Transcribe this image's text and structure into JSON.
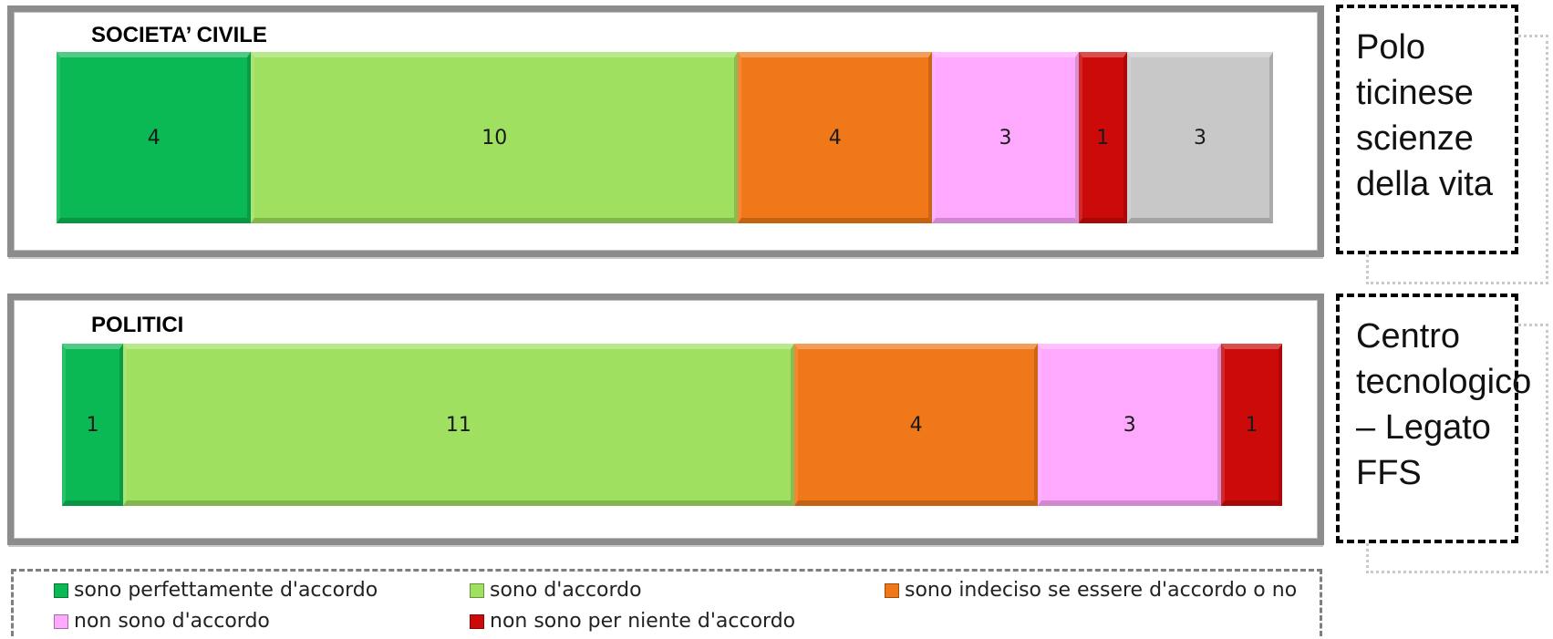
{
  "chart_data": [
    {
      "type": "bar",
      "orientation": "horizontal-stacked",
      "title": "SOCIETA’ CIVILE",
      "series": [
        {
          "name": "sono perfettamente d'accordo",
          "value": 4,
          "color": "#0ab854"
        },
        {
          "name": "sono d'accordo",
          "value": 10,
          "color": "#a0e060"
        },
        {
          "name": "sono indeciso se essere d'accordo o no",
          "value": 4,
          "color": "#f07818"
        },
        {
          "name": "non sono d'accordo",
          "value": 3,
          "color": "#fea8fe"
        },
        {
          "name": "non sono per niente d'accordo",
          "value": 1,
          "color": "#cc0a0a"
        },
        {
          "name": "",
          "value": 3,
          "color": "#c8c8c8"
        }
      ]
    },
    {
      "type": "bar",
      "orientation": "horizontal-stacked",
      "title": "POLITICI",
      "series": [
        {
          "name": "sono perfettamente d'accordo",
          "value": 1,
          "color": "#0ab854"
        },
        {
          "name": "sono d'accordo",
          "value": 11,
          "color": "#a0e060"
        },
        {
          "name": "sono indeciso se essere d'accordo o no",
          "value": 4,
          "color": "#f07818"
        },
        {
          "name": "non sono d'accordo",
          "value": 3,
          "color": "#fea8fe"
        },
        {
          "name": "non sono per niente d'accordo",
          "value": 1,
          "color": "#cc0a0a"
        }
      ]
    }
  ],
  "legend": {
    "position": "bottom",
    "items": [
      {
        "label": "sono perfettamente d'accordo",
        "color": "#0ab854"
      },
      {
        "label": "sono d'accordo",
        "color": "#a0e060"
      },
      {
        "label": "sono indeciso se essere d'accordo o no",
        "color": "#f07818"
      },
      {
        "label": "non sono d'accordo",
        "color": "#fea8fe"
      },
      {
        "label": "non sono per niente d'accordo",
        "color": "#cc0a0a"
      }
    ]
  },
  "side_boxes": [
    {
      "text": "Polo ticinese scienze della vita"
    },
    {
      "text": "Centro tecnologico – Legato FFS"
    }
  ]
}
